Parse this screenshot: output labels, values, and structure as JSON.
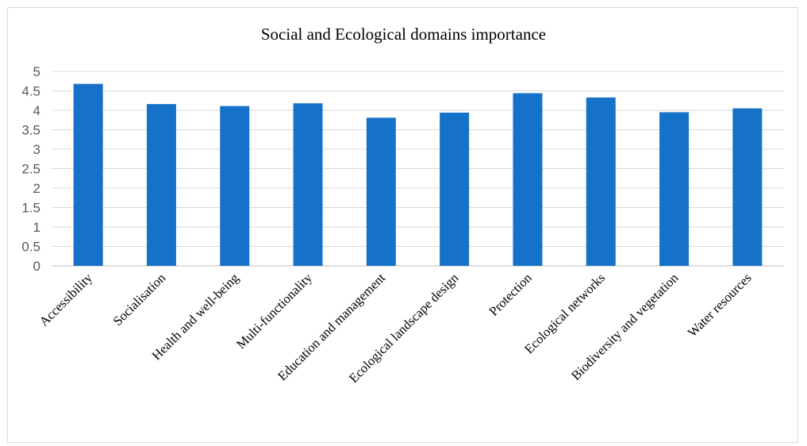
{
  "chart_data": {
    "type": "bar",
    "title": "Social and Ecological domains importance",
    "xlabel": "",
    "ylabel": "",
    "ylim": [
      0,
      5
    ],
    "yticks": [
      0,
      0.5,
      1,
      1.5,
      2,
      2.5,
      3,
      3.5,
      4,
      4.5,
      5
    ],
    "grid": true,
    "legend": "none",
    "bar_color": "#1672c9",
    "categories": [
      "Accessibility",
      "Socialisation",
      "Health and well-being",
      "Multi-functionality",
      "Education and management",
      "Ecological landscape design",
      "Protection",
      "Ecological networks",
      "Biodiversity and vegetation",
      "Water resources"
    ],
    "values": [
      4.68,
      4.16,
      4.11,
      4.18,
      3.81,
      3.94,
      4.44,
      4.33,
      3.95,
      4.05
    ]
  }
}
